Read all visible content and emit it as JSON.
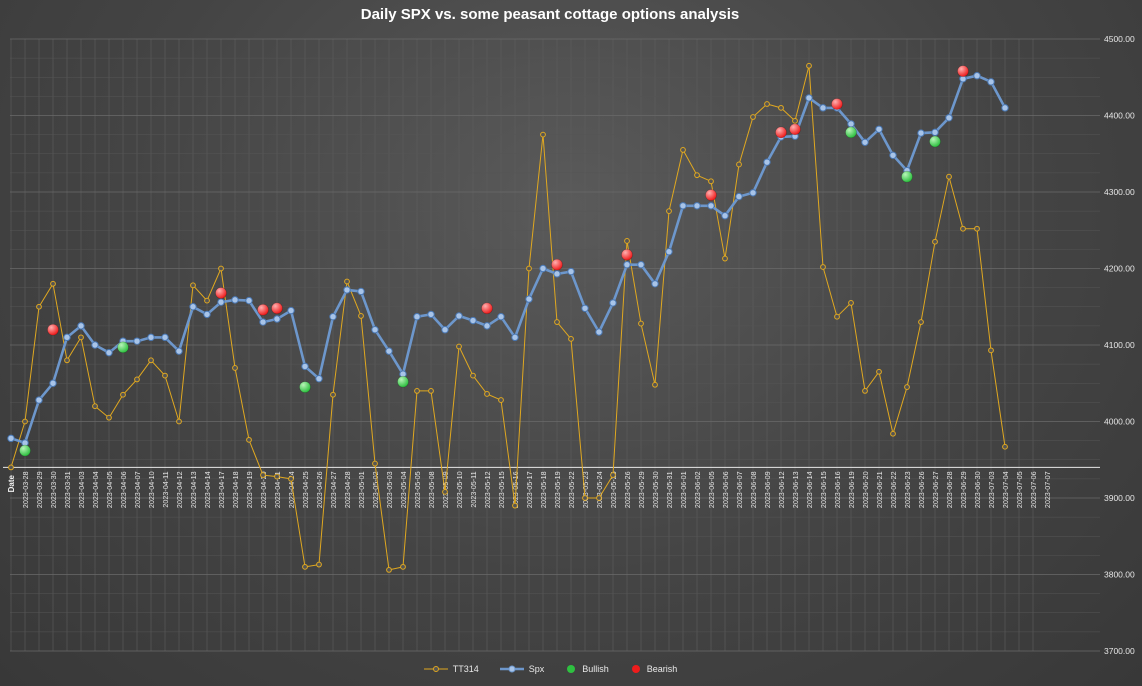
{
  "chart_data": {
    "type": "line",
    "title": "Daily SPX vs. some peasant cottage options analysis",
    "x_axis_label": "Date",
    "y_ticks": [
      "3700.00",
      "3800.00",
      "3900.00",
      "4000.00",
      "4100.00",
      "4200.00",
      "4300.00",
      "4400.00",
      "4500.00"
    ],
    "ylim": [
      3700,
      4500
    ],
    "x_axis_crossing": 3940,
    "legend_position": "bottom",
    "x": [
      "2023-03-28",
      "2023-03-29",
      "2023-03-30",
      "2023-03-31",
      "2023-04-03",
      "2023-04-04",
      "2023-04-05",
      "2023-04-06",
      "2023-04-07",
      "2023-04-10",
      "2023-04-11",
      "2023-04-12",
      "2023-04-13",
      "2023-04-14",
      "2023-04-17",
      "2023-04-18",
      "2023-04-19",
      "2023-04-20",
      "2023-04-21",
      "2023-04-24",
      "2023-04-25",
      "2023-04-26",
      "2023-04-27",
      "2023-04-28",
      "2023-05-01",
      "2023-05-02",
      "2023-05-03",
      "2023-05-04",
      "2023-05-05",
      "2023-05-08",
      "2023-05-09",
      "2023-05-10",
      "2023-05-11",
      "2023-05-12",
      "2023-05-15",
      "2023-05-16",
      "2023-05-17",
      "2023-05-18",
      "2023-05-19",
      "2023-05-22",
      "2023-05-23",
      "2023-05-24",
      "2023-05-25",
      "2023-05-26",
      "2023-05-29",
      "2023-05-30",
      "2023-05-31",
      "2023-06-01",
      "2023-06-02",
      "2023-06-05",
      "2023-06-06",
      "2023-06-07",
      "2023-06-08",
      "2023-06-09",
      "2023-06-12",
      "2023-06-13",
      "2023-06-14",
      "2023-06-15",
      "2023-06-16",
      "2023-06-19",
      "2023-06-20",
      "2023-06-21",
      "2023-06-22",
      "2023-06-23",
      "2023-06-26",
      "2023-06-27",
      "2023-06-28",
      "2023-06-29",
      "2023-06-30",
      "2023-07-03",
      "2023-07-04",
      "2023-07-05",
      "2023-07-06",
      "2023-07-07"
    ],
    "series": [
      {
        "name": "TT314",
        "color": "#e0a820",
        "values": [
          3940,
          4000,
          4150,
          4180,
          4080,
          4110,
          4020,
          4005,
          4035,
          4055,
          4080,
          4060,
          4000,
          4178,
          4158,
          4200,
          4070,
          3976,
          3930,
          3928,
          3925,
          3810,
          3813,
          4035,
          4183,
          4138,
          3945,
          3806,
          3810,
          4040,
          4040,
          3908,
          4098,
          4060,
          4036,
          4028,
          3890,
          4200,
          4375,
          4130,
          4108,
          3900,
          3900,
          3930,
          4236,
          4128,
          4048,
          4275,
          4355,
          4322,
          4314,
          4213,
          4336,
          4398,
          4415,
          4410,
          4393,
          4465,
          4202,
          4137,
          4155,
          4040,
          4065,
          3984,
          4045,
          4130,
          4235,
          4320,
          4252,
          4252,
          4093,
          3967,
          null,
          null
        ]
      },
      {
        "name": "Spx",
        "color": "#6d97cc",
        "values": [
          3978,
          3972,
          4028,
          4050,
          4110,
          4125,
          4100,
          4090,
          4105,
          4105,
          4110,
          4110,
          4092,
          4150,
          4140,
          4156,
          4159,
          4158,
          4130,
          4134,
          4145,
          4072,
          4056,
          4137,
          4172,
          4170,
          4120,
          4092,
          4062,
          4137,
          4140,
          4120,
          4138,
          4132,
          4125,
          4137,
          4110,
          4160,
          4200,
          4193,
          4196,
          4148,
          4117,
          4155,
          4205,
          4205,
          4180,
          4222,
          4282,
          4282,
          4282,
          4269,
          4294,
          4299,
          4339,
          4372,
          4373,
          4423,
          4410,
          4410,
          4389,
          4365,
          4382,
          4348,
          4328,
          4377,
          4378,
          4397,
          4448,
          4452,
          4444,
          4410,
          null,
          null
        ]
      },
      {
        "name": "Bullish",
        "color": "#2ec040",
        "points": [
          [
            "2023-03-29",
            3962
          ],
          [
            "2023-04-07",
            4097
          ],
          [
            "2023-04-26",
            4045
          ],
          [
            "2023-05-05",
            4052
          ],
          [
            "2023-06-20",
            4378
          ],
          [
            "2023-06-26",
            4320
          ],
          [
            "2023-06-28",
            4366
          ]
        ]
      },
      {
        "name": "Bearish",
        "color": "#ee1c1c",
        "points": [
          [
            "2023-03-31",
            4120
          ],
          [
            "2023-04-18",
            4168
          ],
          [
            "2023-04-21",
            4146
          ],
          [
            "2023-04-24",
            4148
          ],
          [
            "2023-05-15",
            4148
          ],
          [
            "2023-05-22",
            4205
          ],
          [
            "2023-05-29",
            4218
          ],
          [
            "2023-06-06",
            4296
          ],
          [
            "2023-06-13",
            4378
          ],
          [
            "2023-06-14",
            4382
          ],
          [
            "2023-06-19",
            4415
          ],
          [
            "2023-06-30",
            4458
          ]
        ]
      }
    ]
  }
}
